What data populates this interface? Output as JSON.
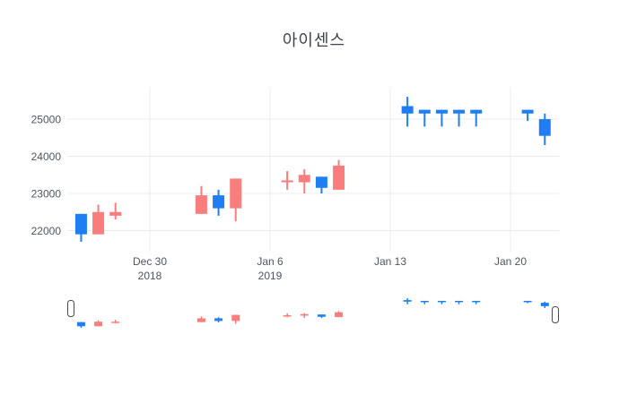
{
  "title_text": "아이센스",
  "colors": {
    "increasing": "#fa7d7d",
    "decreasing": "#1f7ff2",
    "grid": "#e9ecef",
    "axis_text": "#4c5561",
    "title_text": "#3c434e",
    "background": "#ffffff",
    "slider_handle_border": "#4a4a4a",
    "slider_handle_fill": "#ffffff"
  },
  "chart_data": {
    "type": "candlestick",
    "title": "아이센스",
    "legend": "none",
    "grid": "on",
    "x_axis": {
      "ticks": [
        {
          "date": "2018-12-30",
          "line1": "Dec 30",
          "line2": "2018"
        },
        {
          "date": "2019-01-06",
          "line1": "Jan 6",
          "line2": "2019"
        },
        {
          "date": "2019-01-13",
          "line1": "Jan 13",
          "line2": ""
        },
        {
          "date": "2019-01-20",
          "line1": "Jan 20",
          "line2": ""
        }
      ]
    },
    "y_axis": {
      "ticks": [
        22000,
        23000,
        24000,
        25000
      ],
      "range": [
        21430,
        25870
      ]
    },
    "candles": [
      {
        "date": "2018-12-26",
        "open": 22450,
        "high": 22450,
        "low": 21700,
        "close": 21900
      },
      {
        "date": "2018-12-27",
        "open": 21900,
        "high": 22700,
        "low": 21900,
        "close": 22500
      },
      {
        "date": "2018-12-28",
        "open": 22400,
        "high": 22750,
        "low": 22300,
        "close": 22500
      },
      {
        "date": "2019-01-02",
        "open": 22450,
        "high": 23200,
        "low": 22450,
        "close": 22950
      },
      {
        "date": "2019-01-03",
        "open": 22950,
        "high": 23100,
        "low": 22400,
        "close": 22600
      },
      {
        "date": "2019-01-04",
        "open": 22600,
        "high": 23400,
        "low": 22250,
        "close": 23400
      },
      {
        "date": "2019-01-07",
        "open": 23300,
        "high": 23600,
        "low": 23100,
        "close": 23350
      },
      {
        "date": "2019-01-08",
        "open": 23300,
        "high": 23650,
        "low": 23000,
        "close": 23500
      },
      {
        "date": "2019-01-09",
        "open": 23450,
        "high": 23450,
        "low": 23000,
        "close": 23150
      },
      {
        "date": "2019-01-10",
        "open": 23100,
        "high": 23900,
        "low": 23100,
        "close": 23750
      },
      {
        "date": "2019-01-14",
        "open": 25350,
        "high": 25600,
        "low": 24800,
        "close": 25150
      },
      {
        "date": "2019-01-15",
        "open": 25250,
        "high": 25250,
        "low": 24800,
        "close": 25150
      },
      {
        "date": "2019-01-16",
        "open": 25250,
        "high": 25250,
        "low": 24800,
        "close": 25150
      },
      {
        "date": "2019-01-17",
        "open": 25250,
        "high": 25250,
        "low": 24800,
        "close": 25150
      },
      {
        "date": "2019-01-18",
        "open": 25250,
        "high": 25250,
        "low": 24800,
        "close": 25150
      },
      {
        "date": "2019-01-21",
        "open": 25250,
        "high": 25250,
        "low": 24950,
        "close": 25150
      },
      {
        "date": "2019-01-22",
        "open": 25000,
        "high": 25150,
        "low": 24300,
        "close": 24550
      }
    ],
    "rangeslider": {
      "present": true,
      "full_range_selected": true
    }
  }
}
